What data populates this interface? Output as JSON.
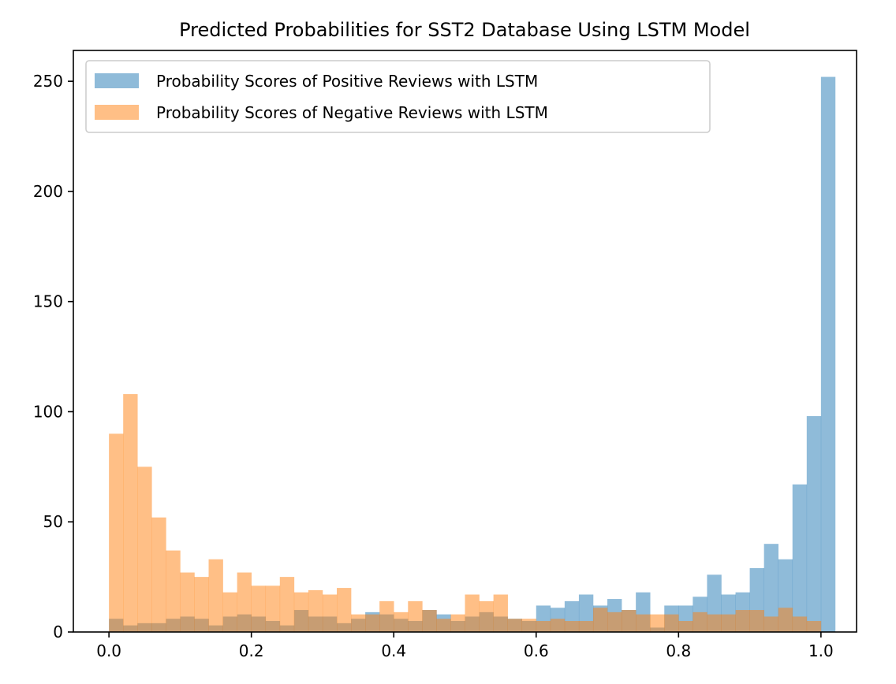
{
  "chart_data": {
    "type": "bar",
    "subtype": "overlapping-histogram",
    "title": "Predicted Probabilities for SST2 Database Using LSTM Model",
    "xlabel": "",
    "ylabel": "",
    "xlim": [
      -0.05,
      1.05
    ],
    "ylim": [
      0,
      264
    ],
    "bin_width": 0.02,
    "bin_start": 0.0,
    "xticks": [
      0.0,
      0.2,
      0.4,
      0.6,
      0.8,
      1.0
    ],
    "xtick_labels": [
      "0.0",
      "0.2",
      "0.4",
      "0.6",
      "0.8",
      "1.0"
    ],
    "yticks": [
      0,
      50,
      100,
      150,
      200,
      250
    ],
    "ytick_labels": [
      "0",
      "50",
      "100",
      "150",
      "200",
      "250"
    ],
    "grid": false,
    "legend_position": "upper-left",
    "series": [
      {
        "name": "Probability Scores of Positive Reviews with LSTM",
        "color": "#1f77b4",
        "alpha": 0.5,
        "values": [
          6,
          3,
          4,
          4,
          6,
          7,
          6,
          3,
          7,
          8,
          7,
          5,
          3,
          10,
          7,
          7,
          4,
          6,
          9,
          8,
          6,
          5,
          10,
          8,
          5,
          7,
          9,
          7,
          6,
          5,
          12,
          11,
          14,
          17,
          12,
          15,
          10,
          18,
          2,
          12,
          12,
          16,
          26,
          17,
          18,
          29,
          40,
          33,
          67,
          98,
          252
        ]
      },
      {
        "name": "Probability Scores of Negative Reviews with LSTM",
        "color": "#ff7f0e",
        "alpha": 0.5,
        "values": [
          90,
          108,
          75,
          52,
          37,
          27,
          25,
          33,
          18,
          27,
          21,
          21,
          25,
          18,
          19,
          17,
          20,
          8,
          8,
          14,
          9,
          14,
          10,
          6,
          8,
          17,
          14,
          17,
          6,
          6,
          5,
          6,
          5,
          5,
          11,
          9,
          10,
          8,
          8,
          8,
          5,
          9,
          8,
          8,
          10,
          10,
          7,
          11,
          7,
          5,
          0
        ]
      }
    ]
  }
}
